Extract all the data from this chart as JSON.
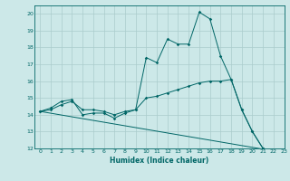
{
  "title": "",
  "xlabel": "Humidex (Indice chaleur)",
  "background_color": "#cce8e8",
  "line_color": "#006666",
  "grid_color": "#aacccc",
  "xlim": [
    -0.5,
    23
  ],
  "ylim": [
    12,
    20.5
  ],
  "yticks": [
    12,
    13,
    14,
    15,
    16,
    17,
    18,
    19,
    20
  ],
  "xticks": [
    0,
    1,
    2,
    3,
    4,
    5,
    6,
    7,
    8,
    9,
    10,
    11,
    12,
    13,
    14,
    15,
    16,
    17,
    18,
    19,
    20,
    21,
    22,
    23
  ],
  "line1_x": [
    0,
    1,
    2,
    3,
    4,
    5,
    6,
    7,
    8,
    9,
    10,
    11,
    12,
    13,
    14,
    15,
    16,
    17,
    18,
    19,
    20,
    21,
    22
  ],
  "line1_y": [
    14.2,
    14.4,
    14.8,
    14.9,
    14.0,
    14.1,
    14.1,
    13.8,
    14.1,
    14.3,
    17.4,
    17.1,
    18.5,
    18.2,
    18.2,
    20.1,
    19.7,
    17.5,
    16.1,
    14.3,
    13.0,
    12.0,
    11.85
  ],
  "line2_x": [
    0,
    1,
    2,
    3,
    4,
    5,
    6,
    7,
    8,
    9,
    10,
    11,
    12,
    13,
    14,
    15,
    16,
    17,
    18,
    19,
    20,
    21,
    22
  ],
  "line2_y": [
    14.2,
    14.3,
    14.6,
    14.8,
    14.3,
    14.3,
    14.2,
    14.0,
    14.2,
    14.3,
    15.0,
    15.1,
    15.3,
    15.5,
    15.7,
    15.9,
    16.0,
    16.0,
    16.1,
    14.3,
    13.0,
    12.0,
    11.85
  ],
  "line3_x": [
    0,
    22
  ],
  "line3_y": [
    14.2,
    11.85
  ]
}
